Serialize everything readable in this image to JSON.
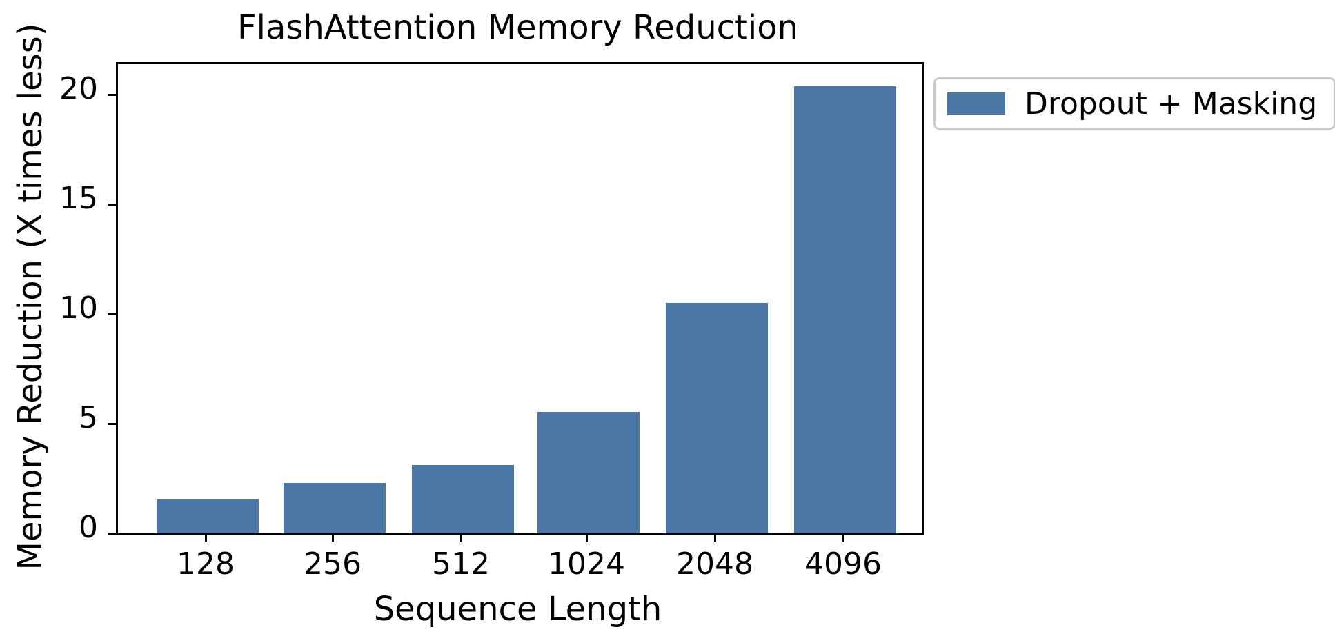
{
  "chart_data": {
    "type": "bar",
    "title": "FlashAttention Memory Reduction",
    "xlabel": "Sequence Length",
    "ylabel": "Memory Reduction (X times less)",
    "categories": [
      "128",
      "256",
      "512",
      "1024",
      "2048",
      "4096"
    ],
    "series": [
      {
        "name": "Dropout + Masking",
        "values": [
          1.55,
          2.3,
          3.1,
          5.55,
          10.5,
          20.4
        ]
      }
    ],
    "ylim": [
      0,
      21.4
    ],
    "yticks": [
      0,
      5,
      10,
      15,
      20
    ],
    "ytick_labels": [
      "0",
      "5",
      "10",
      "15",
      "20"
    ],
    "grid": false,
    "legend_position": "outside-upper-right",
    "bar_color": "#4c78a8"
  },
  "colors": {
    "bar": "#4c78a8",
    "legend_border": "#cccccc",
    "axis": "#000000",
    "background": "#ffffff"
  },
  "legend": {
    "label": "Dropout + Masking"
  }
}
